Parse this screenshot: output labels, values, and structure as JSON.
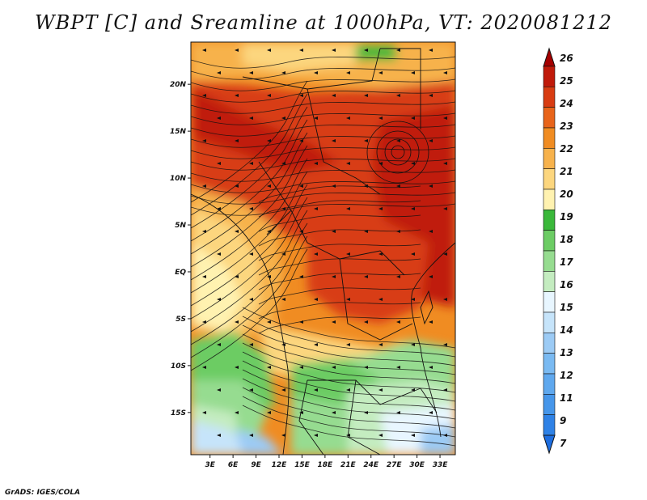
{
  "title": "WBPT [C] and Sreamline at 1000hPa, VT: 2020081212",
  "credit": "GrADS: IGES/COLA",
  "map": {
    "lat_labels": [
      {
        "label": "20N",
        "value": 20
      },
      {
        "label": "15N",
        "value": 15
      },
      {
        "label": "10N",
        "value": 10
      },
      {
        "label": "5N",
        "value": 5
      },
      {
        "label": "EQ",
        "value": 0
      },
      {
        "label": "5S",
        "value": -5
      },
      {
        "label": "10S",
        "value": -10
      },
      {
        "label": "15S",
        "value": -15
      }
    ],
    "lon_labels": [
      {
        "label": "3E",
        "value": 3
      },
      {
        "label": "6E",
        "value": 6
      },
      {
        "label": "9E",
        "value": 9
      },
      {
        "label": "12E",
        "value": 12
      },
      {
        "label": "15E",
        "value": 15
      },
      {
        "label": "18E",
        "value": 18
      },
      {
        "label": "21E",
        "value": 21
      },
      {
        "label": "24E",
        "value": 24
      },
      {
        "label": "27E",
        "value": 27
      },
      {
        "label": "30E",
        "value": 30
      },
      {
        "label": "33E",
        "value": 33
      }
    ],
    "lon_range": [
      0.5,
      35
    ],
    "lat_range": [
      -19.5,
      24.5
    ]
  },
  "colorbar": {
    "levels": [
      "7",
      "9",
      "11",
      "12",
      "13",
      "14",
      "15",
      "16",
      "17",
      "18",
      "19",
      "20",
      "21",
      "22",
      "23",
      "24",
      "25",
      "26"
    ],
    "colors": [
      "#1e6ee0",
      "#2f82e6",
      "#4696ea",
      "#5fa8ee",
      "#7abaf2",
      "#9ccbf5",
      "#c6e4fa",
      "#e8f6ff",
      "#c4ecc0",
      "#96dc90",
      "#6ccc64",
      "#3ab83a",
      "#fff2b0",
      "#fcd67e",
      "#f7b24c",
      "#f08c22",
      "#e8641a",
      "#d83c12",
      "#c01a0a",
      "#a50000"
    ]
  },
  "colors": {
    "background": "#ffffff",
    "streamline": "#111111",
    "frame": "#111111"
  }
}
